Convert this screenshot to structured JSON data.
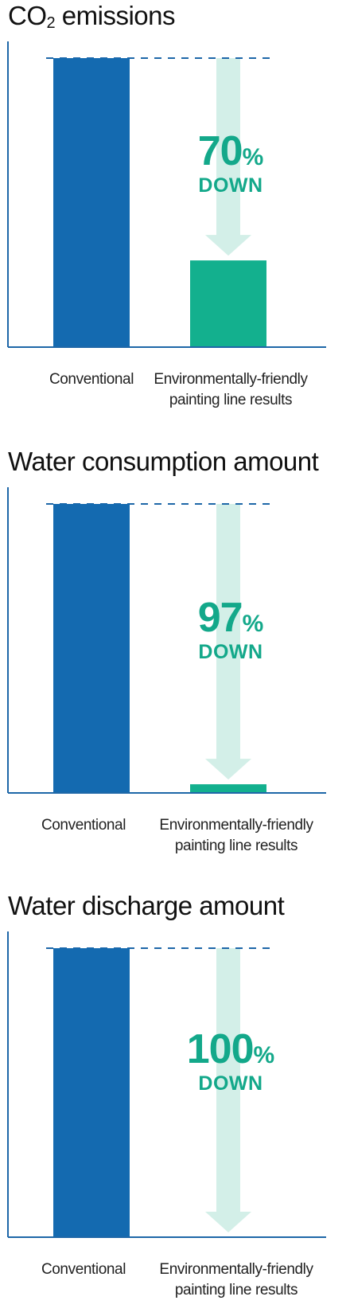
{
  "chart_data": [
    {
      "type": "bar",
      "title_main": "CO",
      "title_sub": "2",
      "title_rest": " emissions",
      "categories": [
        "Conventional",
        "Environmentally-friendly painting line results"
      ],
      "category_lines": [
        [
          "Conventional"
        ],
        [
          "Environmentally-friendly",
          "painting line results"
        ]
      ],
      "values": [
        100,
        30
      ],
      "ylim": [
        0,
        100
      ],
      "reduction_value": "70",
      "reduction_unit": "%",
      "reduction_word": "DOWN"
    },
    {
      "type": "bar",
      "title": "Water consumption amount",
      "categories": [
        "Conventional",
        "Environmentally-friendly painting line results"
      ],
      "category_lines": [
        [
          "Conventional"
        ],
        [
          "Environmentally-friendly",
          "painting line results"
        ]
      ],
      "values": [
        100,
        3
      ],
      "ylim": [
        0,
        100
      ],
      "reduction_value": "97",
      "reduction_unit": "%",
      "reduction_word": "DOWN"
    },
    {
      "type": "bar",
      "title": "Water discharge amount",
      "categories": [
        "Conventional",
        "Environmentally-friendly painting line results"
      ],
      "category_lines": [
        [
          "Conventional"
        ],
        [
          "Environmentally-friendly",
          "painting line results"
        ]
      ],
      "values": [
        100,
        0
      ],
      "ylim": [
        0,
        100
      ],
      "reduction_value": "100",
      "reduction_unit": "%",
      "reduction_word": "DOWN"
    }
  ],
  "colors": {
    "conventional_bar": "#146ab0",
    "eco_bar": "#13b08e",
    "arrow": "#d3efe8",
    "axis": "#1e67a8",
    "dashed_line": "#1e67a8",
    "reduction_text": "#13a88a"
  }
}
